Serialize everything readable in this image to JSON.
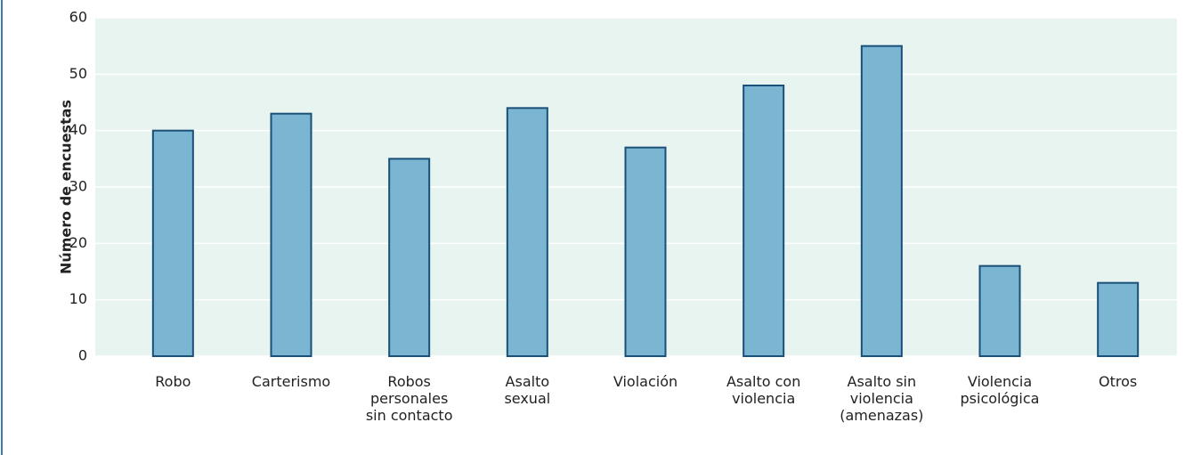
{
  "chart_data": {
    "type": "bar",
    "y_label": "Número de encuestas",
    "categories": [
      "Robo",
      "Carterismo",
      "Robos\npersonales\nsin contacto",
      "Asalto\nsexual",
      "Violación",
      "Asalto con\nviolencia",
      "Asalto sin\nviolencia\n(amenazas)",
      "Violencia\npsicológica",
      "Otros"
    ],
    "values": [
      40,
      43,
      35,
      44,
      37,
      48,
      55,
      16,
      13
    ],
    "color": "#7ab6d1",
    "edge_color": "#1a4f7a",
    "background": "#e8f4f0",
    "ylim": [
      0,
      60
    ],
    "yticks": [
      0,
      10,
      20,
      30,
      40,
      50,
      60
    ],
    "grid": true
  }
}
